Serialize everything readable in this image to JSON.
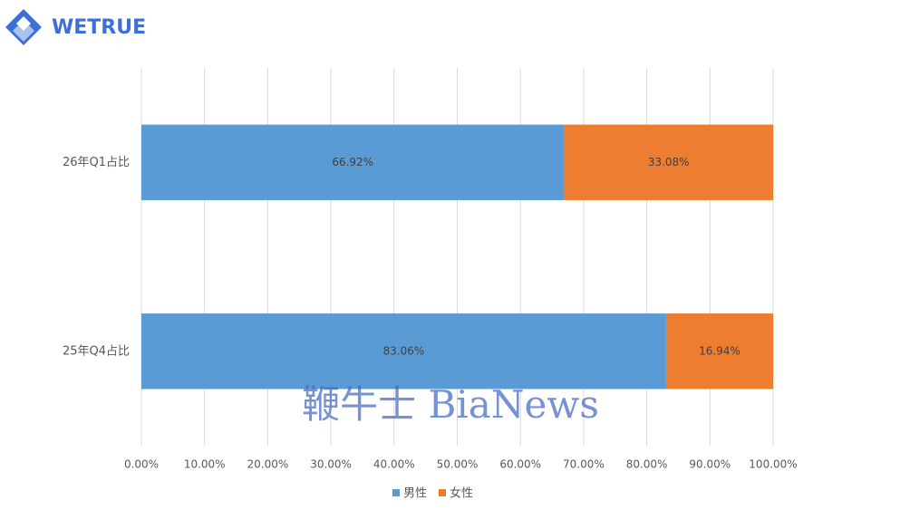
{
  "logo": "WETRUE",
  "watermark": "鞭牛士 BiaNews",
  "chart_data": {
    "type": "stacked-barh",
    "categories": [
      "26年Q1占比",
      "25年Q4占比"
    ],
    "series": [
      {
        "name": "男性",
        "color": "#5b9bd5",
        "values": [
          66.92,
          83.06
        ],
        "value_labels": [
          "66.92%",
          "83.06%"
        ]
      },
      {
        "name": "女性",
        "color": "#ed7d31",
        "values": [
          33.08,
          16.94
        ],
        "value_labels": [
          "33.08%",
          "16.94%"
        ]
      }
    ],
    "xlim": [
      0,
      100
    ],
    "xticks": [
      {
        "value": 0,
        "label": "0.00%"
      },
      {
        "value": 10,
        "label": "10.00%"
      },
      {
        "value": 20,
        "label": "20.00%"
      },
      {
        "value": 30,
        "label": "30.00%"
      },
      {
        "value": 40,
        "label": "40.00%"
      },
      {
        "value": 50,
        "label": "50.00%"
      },
      {
        "value": 60,
        "label": "60.00%"
      },
      {
        "value": 70,
        "label": "70.00%"
      },
      {
        "value": 80,
        "label": "80.00%"
      },
      {
        "value": 90,
        "label": "90.00%"
      },
      {
        "value": 100,
        "label": "100.00%"
      }
    ],
    "grid": true,
    "legend": "bottom"
  }
}
